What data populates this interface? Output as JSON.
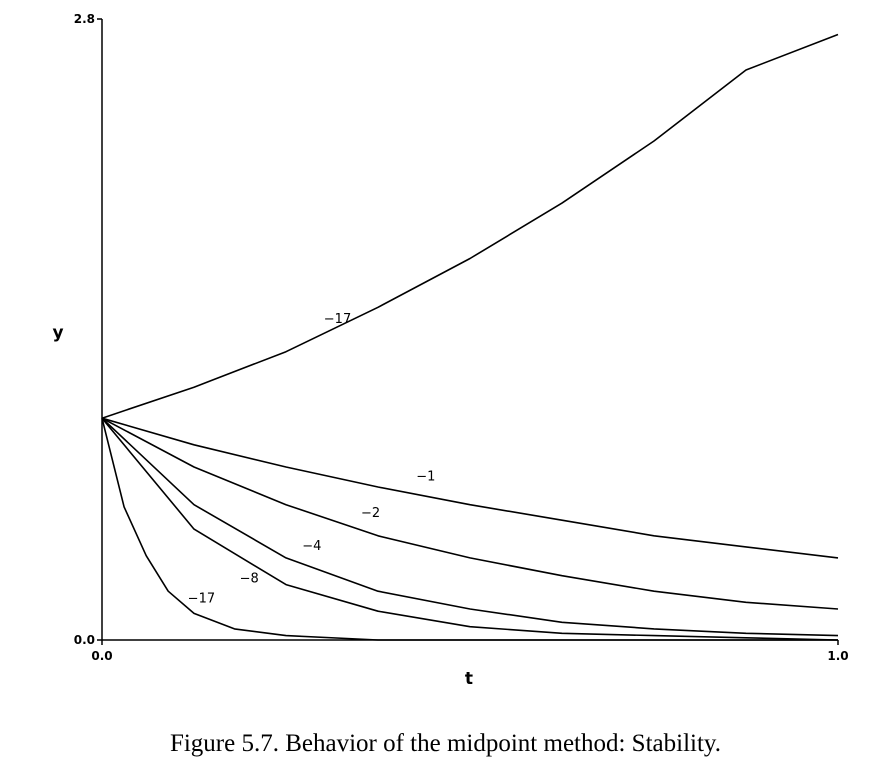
{
  "chart_data": {
    "type": "line",
    "title": "",
    "xlabel": "t",
    "ylabel": "y",
    "xlim": [
      0.0,
      1.0
    ],
    "ylim": [
      0.0,
      2.8
    ],
    "x_ticks": [
      "0.0",
      "1.0"
    ],
    "y_ticks": [
      "0.0",
      "2.8"
    ],
    "grid": false,
    "series": [
      {
        "name": "−17",
        "label_at": {
          "x": 0.32,
          "y": 1.43
        },
        "points": [
          [
            0,
            1.0
          ],
          [
            0.125,
            1.14
          ],
          [
            0.25,
            1.3
          ],
          [
            0.375,
            1.5
          ],
          [
            0.5,
            1.72
          ],
          [
            0.625,
            1.97
          ],
          [
            0.75,
            2.25
          ],
          [
            0.875,
            2.57
          ],
          [
            1.0,
            2.73
          ]
        ]
      },
      {
        "name": "−1",
        "label_at": {
          "x": 0.44,
          "y": 0.72
        },
        "points": [
          [
            0,
            1.0
          ],
          [
            0.125,
            0.88
          ],
          [
            0.25,
            0.78
          ],
          [
            0.375,
            0.69
          ],
          [
            0.5,
            0.61
          ],
          [
            0.625,
            0.54
          ],
          [
            0.75,
            0.47
          ],
          [
            0.875,
            0.42
          ],
          [
            1.0,
            0.37
          ]
        ]
      },
      {
        "name": "−2",
        "label_at": {
          "x": 0.365,
          "y": 0.555
        },
        "points": [
          [
            0,
            1.0
          ],
          [
            0.125,
            0.78
          ],
          [
            0.25,
            0.61
          ],
          [
            0.375,
            0.47
          ],
          [
            0.5,
            0.37
          ],
          [
            0.625,
            0.29
          ],
          [
            0.75,
            0.22
          ],
          [
            0.875,
            0.17
          ],
          [
            1.0,
            0.14
          ]
        ]
      },
      {
        "name": "−4",
        "label_at": {
          "x": 0.285,
          "y": 0.405
        },
        "points": [
          [
            0,
            1.0
          ],
          [
            0.125,
            0.61
          ],
          [
            0.25,
            0.37
          ],
          [
            0.375,
            0.22
          ],
          [
            0.5,
            0.14
          ],
          [
            0.625,
            0.08
          ],
          [
            0.75,
            0.05
          ],
          [
            0.875,
            0.03
          ],
          [
            1.0,
            0.02
          ]
        ]
      },
      {
        "name": "−8",
        "label_at": {
          "x": 0.2,
          "y": 0.26
        },
        "points": [
          [
            0,
            1.0
          ],
          [
            0.125,
            0.5
          ],
          [
            0.25,
            0.25
          ],
          [
            0.375,
            0.13
          ],
          [
            0.5,
            0.06
          ],
          [
            0.625,
            0.03
          ],
          [
            0.75,
            0.02
          ],
          [
            0.875,
            0.01
          ],
          [
            1.0,
            0.0
          ]
        ]
      },
      {
        "name": "−17",
        "label_at": {
          "x": 0.135,
          "y": 0.17
        },
        "points": [
          [
            0,
            1.0
          ],
          [
            0.03,
            0.6
          ],
          [
            0.06,
            0.38
          ],
          [
            0.09,
            0.22
          ],
          [
            0.125,
            0.12
          ],
          [
            0.18,
            0.05
          ],
          [
            0.25,
            0.02
          ],
          [
            0.375,
            0.0
          ],
          [
            0.5,
            0.0
          ],
          [
            0.75,
            0.0
          ],
          [
            1.0,
            0.0
          ]
        ]
      }
    ]
  },
  "caption": "Figure 5.7. Behavior of the midpoint method: Stability."
}
